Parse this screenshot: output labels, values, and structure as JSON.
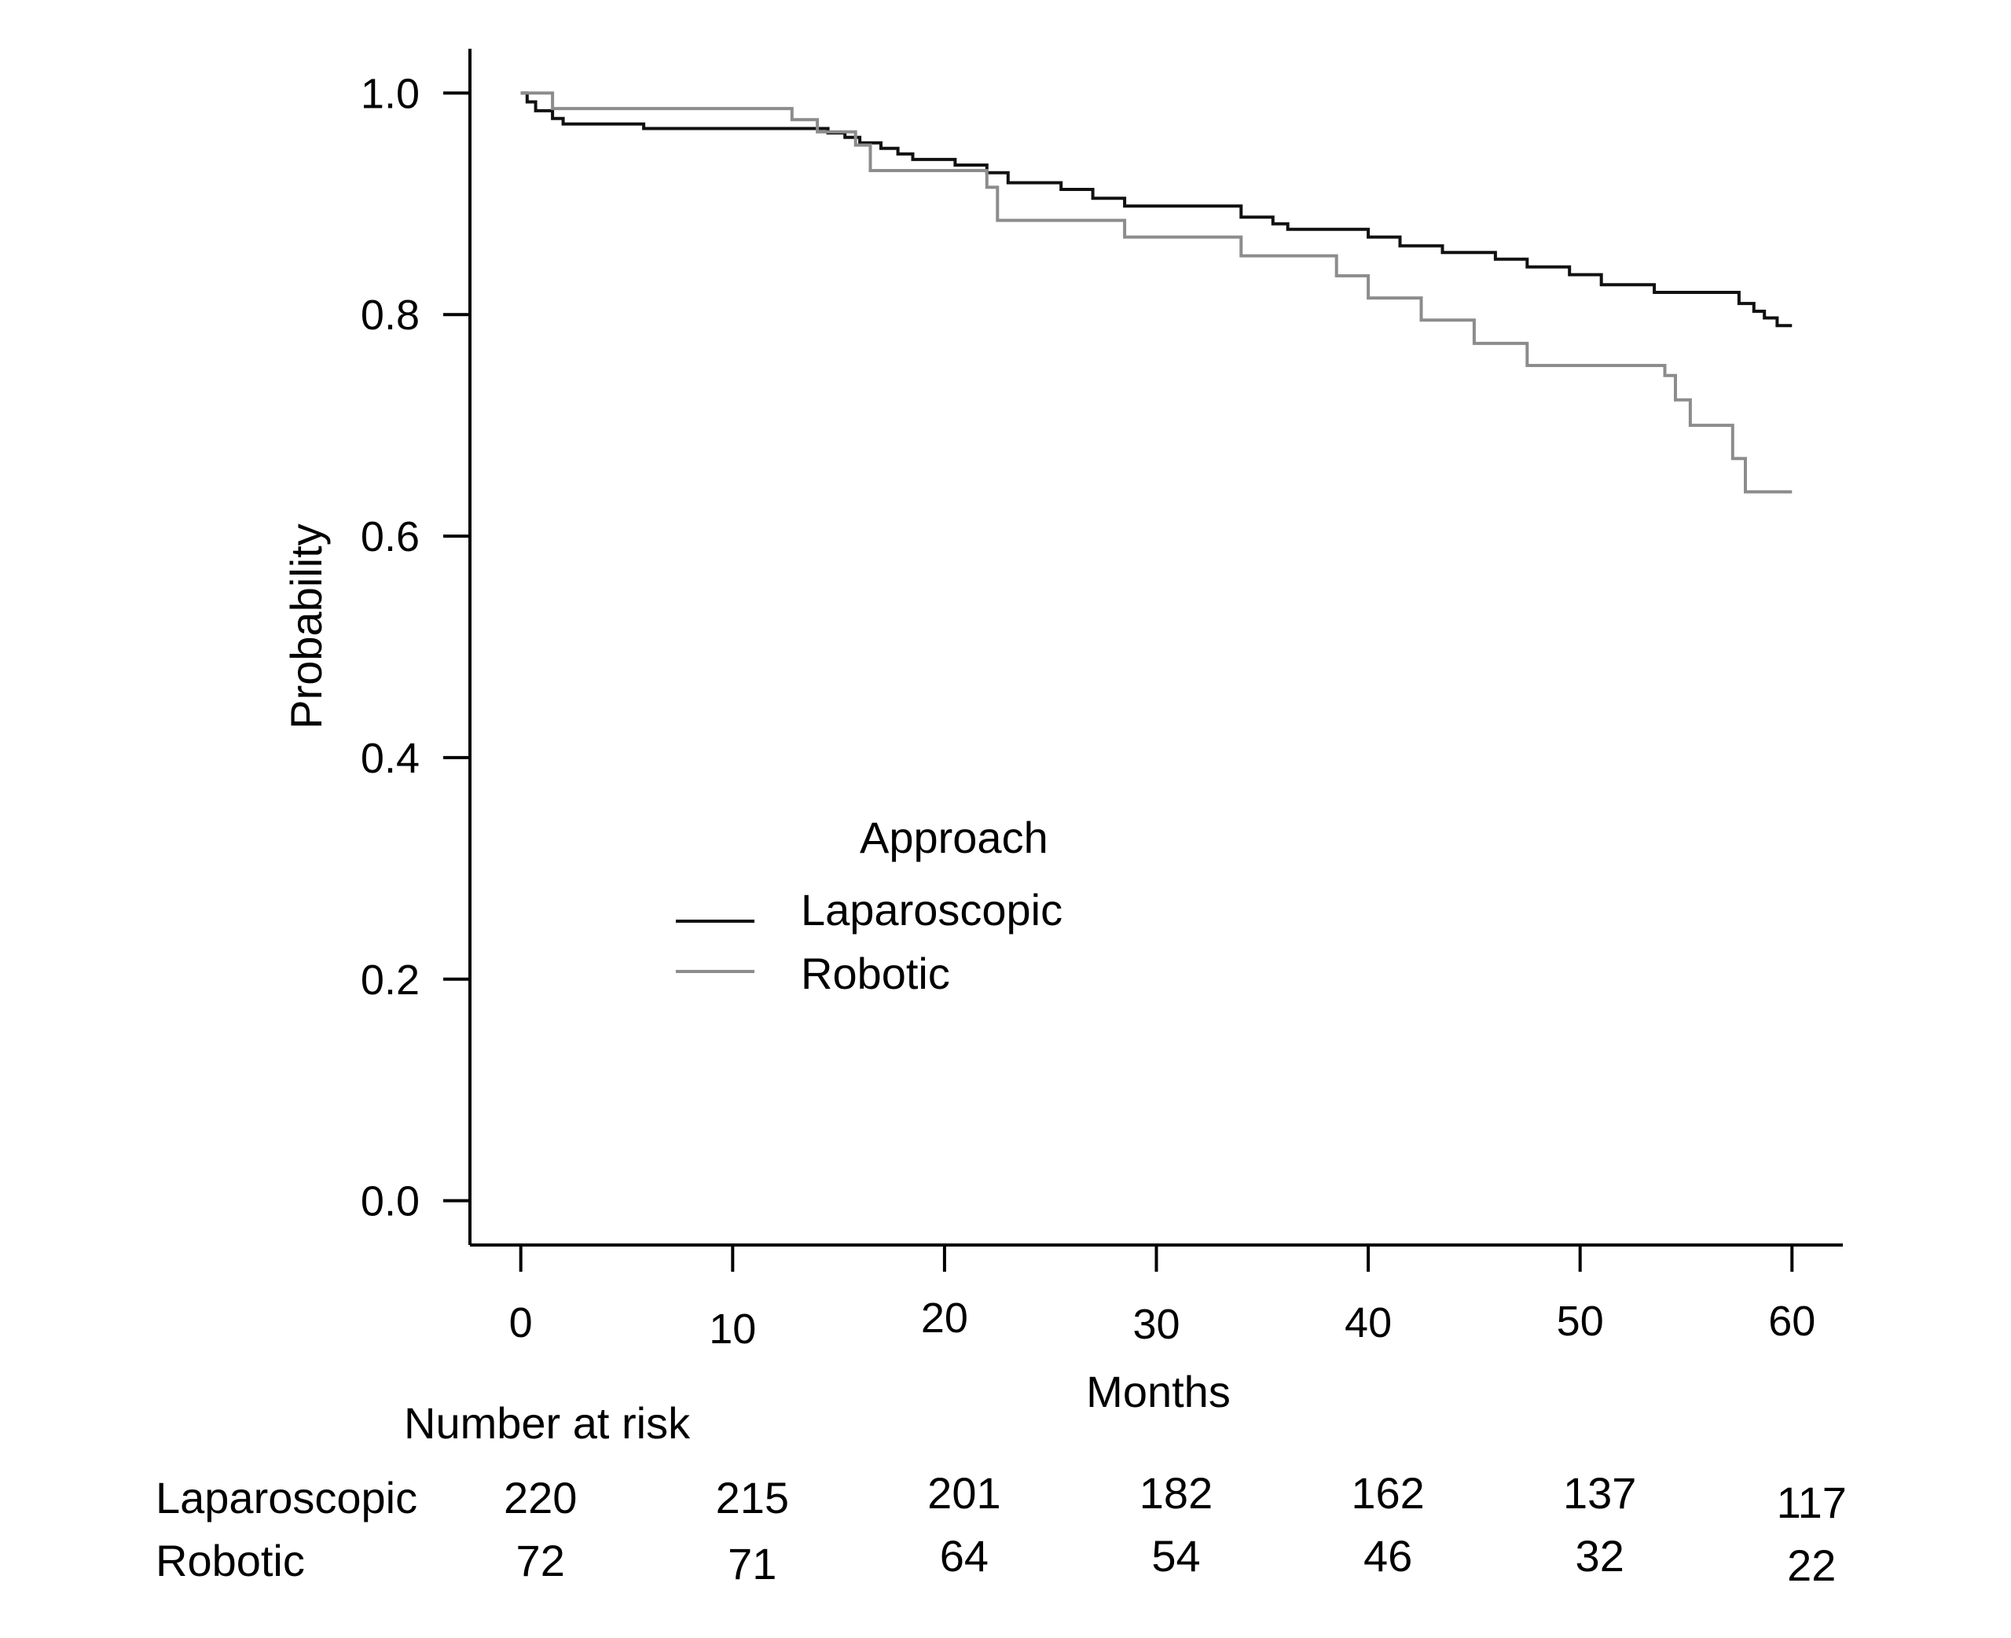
{
  "chart_data": {
    "type": "line",
    "xlabel": "Months",
    "ylabel": "Probability",
    "xlim": [
      -2.4,
      62.4
    ],
    "ylim": [
      -0.04,
      1.04
    ],
    "x_ticks": [
      {
        "value": 0,
        "label": "0"
      },
      {
        "value": 10,
        "label": "10"
      },
      {
        "value": 20,
        "label": "20"
      },
      {
        "value": 30,
        "label": "30"
      },
      {
        "value": 40,
        "label": "40"
      },
      {
        "value": 50,
        "label": "50"
      },
      {
        "value": 60,
        "label": "60"
      }
    ],
    "y_ticks": [
      {
        "value": 0.0,
        "label": "0.0"
      },
      {
        "value": 0.2,
        "label": "0.2"
      },
      {
        "value": 0.4,
        "label": "0.4"
      },
      {
        "value": 0.6,
        "label": "0.6"
      },
      {
        "value": 0.8,
        "label": "0.8"
      },
      {
        "value": 1.0,
        "label": "1.0"
      }
    ],
    "grid": false,
    "step": true,
    "legend": {
      "title": "Approach",
      "position": "center"
    },
    "series": [
      {
        "name": "Laparoscopic",
        "color": "#111111",
        "x": [
          0,
          0.3,
          0.7,
          1.5,
          2.0,
          5.8,
          14.5,
          15.3,
          16.0,
          17.0,
          17.8,
          18.5,
          20.5,
          22.0,
          23.0,
          25.5,
          27.0,
          28.5,
          34.0,
          35.5,
          36.2,
          40.0,
          41.5,
          43.5,
          46.0,
          47.5,
          49.5,
          51.0,
          53.5,
          57.5,
          58.2,
          58.7,
          59.3,
          60.0
        ],
        "y": [
          1.0,
          0.992,
          0.984,
          0.977,
          0.972,
          0.968,
          0.964,
          0.96,
          0.955,
          0.95,
          0.945,
          0.94,
          0.935,
          0.928,
          0.919,
          0.913,
          0.905,
          0.898,
          0.888,
          0.882,
          0.877,
          0.87,
          0.862,
          0.856,
          0.85,
          0.843,
          0.836,
          0.827,
          0.82,
          0.81,
          0.803,
          0.797,
          0.79,
          0.79
        ]
      },
      {
        "name": "Robotic",
        "color": "#8c8c8c",
        "x": [
          0,
          1.5,
          12.8,
          14.0,
          15.8,
          16.5,
          22.0,
          22.5,
          28.5,
          34.0,
          38.5,
          40.0,
          42.5,
          45.0,
          47.5,
          54.0,
          54.5,
          55.2,
          57.2,
          57.8,
          60.0
        ],
        "y": [
          1.0,
          0.986,
          0.976,
          0.965,
          0.953,
          0.93,
          0.915,
          0.885,
          0.87,
          0.853,
          0.835,
          0.815,
          0.795,
          0.774,
          0.754,
          0.745,
          0.723,
          0.7,
          0.67,
          0.64,
          0.64
        ]
      }
    ]
  },
  "risk_table": {
    "title": "Number at risk",
    "rows": [
      {
        "label": "Laparoscopic",
        "values": [
          "220",
          "215",
          "201",
          "182",
          "162",
          "137",
          "117"
        ]
      },
      {
        "label": "Robotic",
        "values": [
          "72",
          "71",
          "64",
          "54",
          "46",
          "32",
          "22"
        ]
      }
    ]
  }
}
